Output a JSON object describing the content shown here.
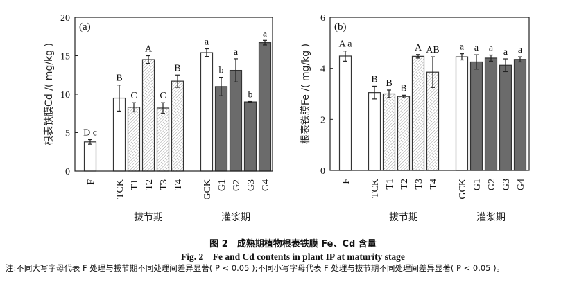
{
  "figure": {
    "caption_cn": "图 2　成熟期植物根表铁膜 Fe、Cd 含量",
    "caption_en": "Fig. 2　Fe and Cd contents in plant IP at maturity stage",
    "note": "注:不同大写字母代表 F 处理与拔节期不同处理间差异显著( P < 0.05 );不同小写字母代表 F 处理与拔节期不同处理间差异显著( P < 0.05 )。"
  },
  "chart_data": [
    {
      "type": "bar",
      "panel_label": "(a)",
      "ylabel": "根表铁膜Cd /( mg/kg )",
      "ylim": [
        0,
        20
      ],
      "yticks": [
        0,
        5,
        10,
        15,
        20
      ],
      "categories": [
        "F",
        "TCK",
        "T1",
        "T2",
        "T3",
        "T4",
        "GCK",
        "G1",
        "G2",
        "G3",
        "G4"
      ],
      "groups": [
        {
          "label": "拔节期",
          "members": [
            "TCK",
            "T1",
            "T2",
            "T3",
            "T4"
          ]
        },
        {
          "label": "灌浆期",
          "members": [
            "GCK",
            "G1",
            "G2",
            "G3",
            "G4"
          ]
        }
      ],
      "values": [
        3.8,
        9.5,
        8.3,
        14.5,
        8.2,
        11.7,
        15.4,
        11.0,
        13.1,
        9.0,
        16.7
      ],
      "errors": [
        0.3,
        1.7,
        0.6,
        0.5,
        0.7,
        0.8,
        0.5,
        1.2,
        1.5,
        0.05,
        0.3
      ],
      "letters": [
        "D c",
        "B",
        "C",
        "A",
        "C",
        "B",
        "a",
        "b",
        "a",
        "b",
        "a"
      ],
      "fills": [
        "white",
        "white",
        "hatched",
        "hatched",
        "hatched",
        "hatched",
        "white",
        "dark",
        "dark",
        "dark",
        "dark"
      ],
      "grid": false
    },
    {
      "type": "bar",
      "panel_label": "(b)",
      "ylabel": "根表铁膜Fe /( mg/kg )",
      "ylim": [
        0,
        6
      ],
      "yticks": [
        0,
        2,
        4,
        6
      ],
      "categories": [
        "F",
        "TCK",
        "T1",
        "T2",
        "T3",
        "T4",
        "GCK",
        "G1",
        "G2",
        "G3",
        "G4"
      ],
      "groups": [
        {
          "label": "拔节期",
          "members": [
            "TCK",
            "T1",
            "T2",
            "T3",
            "T4"
          ]
        },
        {
          "label": "灌浆期",
          "members": [
            "GCK",
            "G1",
            "G2",
            "G3",
            "G4"
          ]
        }
      ],
      "values": [
        4.48,
        3.05,
        3.0,
        2.9,
        4.47,
        3.85,
        4.45,
        4.25,
        4.4,
        4.12,
        4.35
      ],
      "errors": [
        0.2,
        0.25,
        0.15,
        0.05,
        0.07,
        0.6,
        0.12,
        0.28,
        0.12,
        0.25,
        0.1
      ],
      "letters": [
        "A a",
        "B",
        "B",
        "B",
        "A",
        "AB",
        "a",
        "a",
        "a",
        "a",
        "a"
      ],
      "fills": [
        "white",
        "white",
        "hatched",
        "hatched",
        "hatched",
        "hatched",
        "white",
        "dark",
        "dark",
        "dark",
        "dark"
      ],
      "grid": false
    }
  ],
  "colors": {
    "white": "#ffffff",
    "dark": "#6b6b6b",
    "hatch": "#9a9a9a",
    "stroke": "#333333"
  }
}
